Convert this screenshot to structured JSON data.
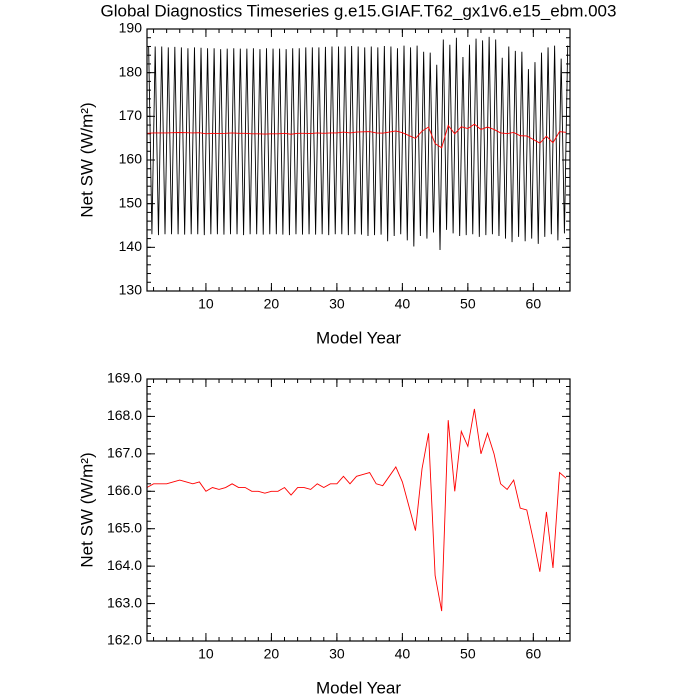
{
  "chart_data": [
    {
      "type": "line",
      "title": "Global Diagnostics Timeseries g.e15.GIAF.T62_gx1v6.e15_ebm.003",
      "x_label": "Model Year",
      "y_label": "Net SW (W/m²)",
      "xlim": [
        1,
        65.6
      ],
      "xticks": [
        10,
        20,
        30,
        40,
        50,
        60
      ],
      "ylim": [
        130,
        190
      ],
      "yticks": [
        130,
        140,
        150,
        160,
        170,
        180,
        190
      ],
      "series": [
        {
          "color": "#000000",
          "x": [
            1.25,
            1.75,
            2.25,
            2.75,
            3.25,
            3.75,
            4.25,
            4.75,
            5.25,
            5.75,
            6.25,
            6.75,
            7.25,
            7.75,
            8.25,
            8.75,
            9.25,
            9.75,
            10.25,
            10.75,
            11.25,
            11.75,
            12.25,
            12.75,
            13.25,
            13.75,
            14.25,
            14.75,
            15.25,
            15.75,
            16.25,
            16.75,
            17.25,
            17.75,
            18.25,
            18.75,
            19.25,
            19.75,
            20.25,
            20.75,
            21.25,
            21.75,
            22.25,
            22.75,
            23.25,
            23.75,
            24.25,
            24.75,
            25.25,
            25.75,
            26.25,
            26.75,
            27.25,
            27.75,
            28.25,
            28.75,
            29.25,
            29.75,
            30.25,
            30.75,
            31.25,
            31.75,
            32.25,
            32.75,
            33.25,
            33.75,
            34.25,
            34.75,
            35.25,
            35.75,
            36.25,
            36.75,
            37.25,
            37.75,
            38.25,
            38.75,
            39.25,
            39.75,
            40.25,
            40.75,
            41.25,
            41.75,
            42.25,
            42.75,
            43.25,
            43.75,
            44.25,
            44.75,
            45.25,
            45.75,
            46.25,
            46.75,
            47.25,
            47.75,
            48.25,
            48.75,
            49.25,
            49.75,
            50.25,
            50.75,
            51.25,
            51.75,
            52.25,
            52.75,
            53.25,
            53.75,
            54.25,
            54.75,
            55.25,
            55.75,
            56.25,
            56.75,
            57.25,
            57.75,
            58.25,
            58.75,
            59.25,
            59.75,
            60.25,
            60.75,
            61.25,
            61.75,
            62.25,
            62.75,
            63.25,
            63.75,
            64.25,
            64.75,
            65.25
          ],
          "values": [
            186,
            143,
            186,
            142.8,
            186,
            143,
            185.8,
            143,
            185.9,
            143,
            185.8,
            142.9,
            185.6,
            143,
            185.8,
            143,
            185.7,
            142.8,
            185.6,
            143,
            185.6,
            143,
            185.4,
            142.9,
            185.5,
            143,
            185.6,
            143,
            185.5,
            142.8,
            185.5,
            143,
            185.6,
            143,
            185.4,
            142.9,
            185.6,
            143,
            185.5,
            143,
            185.5,
            142.9,
            185.4,
            142.8,
            185.6,
            143,
            185.6,
            142.9,
            185.8,
            143,
            185.8,
            142.9,
            185.8,
            143,
            185.9,
            142.8,
            186,
            143,
            186,
            143,
            186,
            142.8,
            186.1,
            143,
            186,
            142.9,
            185.8,
            142.6,
            186,
            142.8,
            185.8,
            142.9,
            186.1,
            141.4,
            186,
            142.6,
            185.6,
            143,
            186.2,
            141.6,
            185.8,
            140.2,
            186.2,
            142.6,
            184.8,
            142,
            184.6,
            143.4,
            181.8,
            139.4,
            187.6,
            144,
            186.4,
            143.2,
            188,
            142.6,
            183.6,
            142.8,
            186.4,
            143,
            187.8,
            142.4,
            187.4,
            142.8,
            188.2,
            143,
            187.6,
            142.6,
            183.4,
            142,
            186,
            141.2,
            185,
            142.4,
            184.8,
            141.4,
            180.8,
            142,
            182.4,
            140.8,
            184.6,
            142.4,
            185.8,
            143,
            186.2,
            141.6,
            183.2,
            143.2,
            186.2
          ]
        },
        {
          "color": "#ff0000",
          "x": [
            1,
            2,
            3,
            4,
            5,
            6,
            7,
            8,
            9,
            10,
            11,
            12,
            13,
            14,
            15,
            16,
            17,
            18,
            19,
            20,
            21,
            22,
            23,
            24,
            25,
            26,
            27,
            28,
            29,
            30,
            31,
            32,
            33,
            34,
            35,
            36,
            37,
            38,
            39,
            40,
            41,
            42,
            43,
            44,
            45,
            46,
            47,
            48,
            49,
            50,
            51,
            52,
            53,
            54,
            55,
            56,
            57,
            58,
            59,
            60,
            61,
            62,
            63,
            64,
            65
          ],
          "values": [
            166.1,
            166.2,
            166.2,
            166.2,
            166.25,
            166.3,
            166.25,
            166.2,
            166.25,
            166.0,
            166.1,
            166.05,
            166.1,
            166.2,
            166.1,
            166.1,
            166.0,
            166.0,
            165.95,
            166.0,
            166.0,
            166.1,
            165.9,
            166.1,
            166.1,
            166.05,
            166.2,
            166.1,
            166.2,
            166.2,
            166.4,
            166.2,
            166.4,
            166.45,
            166.5,
            166.2,
            166.15,
            166.4,
            166.65,
            166.25,
            165.6,
            164.95,
            166.6,
            167.55,
            163.75,
            162.8,
            167.9,
            166.0,
            167.6,
            167.2,
            168.2,
            167.0,
            167.55,
            167.0,
            166.2,
            166.05,
            166.3,
            165.55,
            165.5,
            164.7,
            163.85,
            165.45,
            163.95,
            166.5,
            166.35
          ]
        }
      ]
    },
    {
      "type": "line",
      "x_label": "Model Year",
      "y_label": "Net SW (W/m²)",
      "xlim": [
        1,
        65.6
      ],
      "xticks": [
        10,
        20,
        30,
        40,
        50,
        60
      ],
      "ylim": [
        162,
        169
      ],
      "yticks": [
        {
          "value": 162,
          "label": "162.0"
        },
        {
          "value": 163,
          "label": "163.0"
        },
        {
          "value": 164,
          "label": "164.0"
        },
        {
          "value": 165,
          "label": "165.0"
        },
        {
          "value": 166,
          "label": "166.0"
        },
        {
          "value": 167,
          "label": "167.0"
        },
        {
          "value": 168,
          "label": "168.0"
        },
        {
          "value": 169,
          "label": "169.0"
        }
      ],
      "series": [
        {
          "color": "#ff0000",
          "x": [
            1,
            2,
            3,
            4,
            5,
            6,
            7,
            8,
            9,
            10,
            11,
            12,
            13,
            14,
            15,
            16,
            17,
            18,
            19,
            20,
            21,
            22,
            23,
            24,
            25,
            26,
            27,
            28,
            29,
            30,
            31,
            32,
            33,
            34,
            35,
            36,
            37,
            38,
            39,
            40,
            41,
            42,
            43,
            44,
            45,
            46,
            47,
            48,
            49,
            50,
            51,
            52,
            53,
            54,
            55,
            56,
            57,
            58,
            59,
            60,
            61,
            62,
            63,
            64,
            65
          ],
          "values": [
            166.1,
            166.2,
            166.2,
            166.2,
            166.25,
            166.3,
            166.25,
            166.2,
            166.25,
            166.0,
            166.1,
            166.05,
            166.1,
            166.2,
            166.1,
            166.1,
            166.0,
            166.0,
            165.95,
            166.0,
            166.0,
            166.1,
            165.9,
            166.1,
            166.1,
            166.05,
            166.2,
            166.1,
            166.2,
            166.2,
            166.4,
            166.2,
            166.4,
            166.45,
            166.5,
            166.2,
            166.15,
            166.4,
            166.65,
            166.25,
            165.6,
            164.95,
            166.6,
            167.55,
            163.75,
            162.8,
            167.9,
            166.0,
            167.6,
            167.2,
            168.2,
            167.0,
            167.55,
            167.0,
            166.2,
            166.05,
            166.3,
            165.55,
            165.5,
            164.7,
            163.85,
            165.45,
            163.95,
            166.5,
            166.35
          ]
        }
      ]
    }
  ]
}
